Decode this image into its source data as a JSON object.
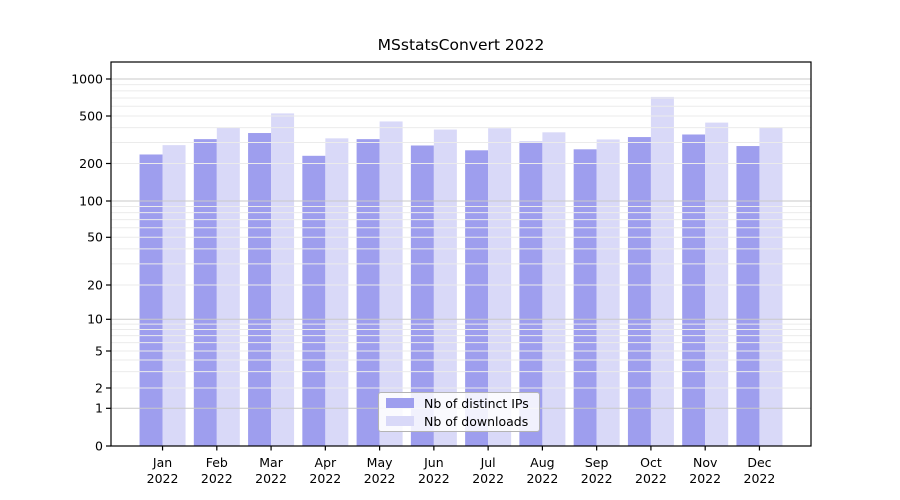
{
  "chart_data": {
    "type": "bar",
    "title": "MSstatsConvert 2022",
    "categories": [
      "Jan",
      "Feb",
      "Mar",
      "Apr",
      "May",
      "Jun",
      "Jul",
      "Aug",
      "Sep",
      "Oct",
      "Nov",
      "Dec"
    ],
    "tick_year": "2022",
    "series": [
      {
        "name": "Nb of distinct IPs",
        "color": "#9e9eee",
        "values": [
          238,
          320,
          360,
          232,
          320,
          283,
          258,
          305,
          263,
          333,
          350,
          280
        ]
      },
      {
        "name": "Nb of downloads",
        "color": "#d9d9f8",
        "values": [
          285,
          400,
          525,
          325,
          450,
          385,
          395,
          365,
          318,
          715,
          440,
          402
        ]
      }
    ],
    "yscale": "symlog",
    "yticks": [
      1000,
      500,
      200,
      100,
      50,
      20,
      10,
      5,
      2,
      1,
      0
    ],
    "ylim": [
      0,
      1400
    ],
    "grid": "on",
    "legend_position": "lower center",
    "colors": {
      "major_grid": "#c9c9c9",
      "minor_grid": "#ebebeb",
      "axis": "#000000"
    }
  }
}
